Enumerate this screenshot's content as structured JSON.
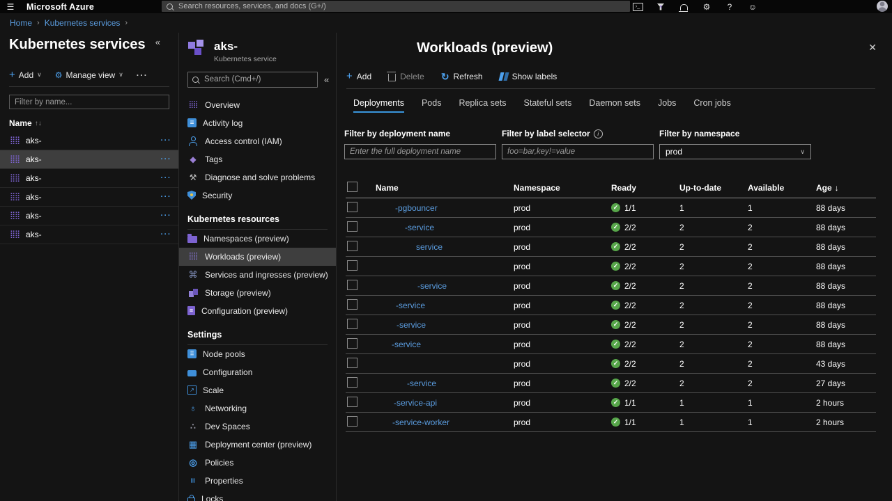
{
  "topbar": {
    "title": "Microsoft Azure",
    "search_placeholder": "Search resources, services, and docs (G+/)"
  },
  "icons": {
    "menu": "☰",
    "collapse": "«",
    "chevron_down": "∨",
    "breadcrumb_separator": "›",
    "more_horizontal": "···",
    "sort_up": "↑",
    "sort_down": "↓",
    "close": "✕",
    "check": "✓",
    "add": "+",
    "refresh": "↻",
    "settings_gear": "⚙",
    "help": "?",
    "feedback": "☺",
    "info": "i"
  },
  "breadcrumb": [
    "Home",
    "Kubernetes services"
  ],
  "left_panel": {
    "title": "Kubernetes services",
    "toolbar": {
      "add": "Add",
      "manage_view": "Manage view"
    },
    "filter_placeholder": "Filter by name...",
    "name_header": "Name",
    "items": [
      {
        "label": "aks-",
        "selected": false
      },
      {
        "label": "aks-",
        "selected": true
      },
      {
        "label": "aks-",
        "selected": false
      },
      {
        "label": "aks-",
        "selected": false
      },
      {
        "label": "aks-",
        "selected": false
      },
      {
        "label": "aks-",
        "selected": false
      }
    ]
  },
  "blade": {
    "title": "aks-",
    "subtitle": "Kubernetes service",
    "search_placeholder": "Search (Cmd+/)",
    "sections": [
      {
        "header": "",
        "items": [
          {
            "label": "Overview",
            "icon": "overview",
            "selected": false
          },
          {
            "label": "Activity log",
            "icon": "activity-log",
            "selected": false
          },
          {
            "label": "Access control (IAM)",
            "icon": "access-control",
            "selected": false
          },
          {
            "label": "Tags",
            "icon": "tags",
            "selected": false
          },
          {
            "label": "Diagnose and solve problems",
            "icon": "diagnose",
            "selected": false
          },
          {
            "label": "Security",
            "icon": "security",
            "selected": false
          }
        ]
      },
      {
        "header": "Kubernetes resources",
        "items": [
          {
            "label": "Namespaces (preview)",
            "icon": "namespaces",
            "selected": false
          },
          {
            "label": "Workloads (preview)",
            "icon": "workloads",
            "selected": true
          },
          {
            "label": "Services and ingresses (preview)",
            "icon": "services",
            "selected": false
          },
          {
            "label": "Storage (preview)",
            "icon": "storage",
            "selected": false
          },
          {
            "label": "Configuration (preview)",
            "icon": "config-doc",
            "selected": false
          }
        ]
      },
      {
        "header": "Settings",
        "items": [
          {
            "label": "Node pools",
            "icon": "node-pools",
            "selected": false
          },
          {
            "label": "Configuration",
            "icon": "toolbox",
            "selected": false
          },
          {
            "label": "Scale",
            "icon": "scale",
            "selected": false
          },
          {
            "label": "Networking",
            "icon": "networking",
            "selected": false
          },
          {
            "label": "Dev Spaces",
            "icon": "dev-spaces",
            "selected": false
          },
          {
            "label": "Deployment center (preview)",
            "icon": "deployment-center",
            "selected": false
          },
          {
            "label": "Policies",
            "icon": "policies",
            "selected": false
          },
          {
            "label": "Properties",
            "icon": "properties",
            "selected": false
          },
          {
            "label": "Locks",
            "icon": "locks",
            "selected": false
          }
        ]
      }
    ]
  },
  "main": {
    "title": "Workloads (preview)",
    "toolbar": [
      {
        "label": "Add",
        "icon": "add",
        "disabled": false
      },
      {
        "label": "Delete",
        "icon": "delete",
        "disabled": true
      },
      {
        "label": "Refresh",
        "icon": "refresh",
        "disabled": false
      },
      {
        "label": "Show labels",
        "icon": "show-labels",
        "disabled": false
      }
    ],
    "tabs": [
      "Deployments",
      "Pods",
      "Replica sets",
      "Stateful sets",
      "Daemon sets",
      "Jobs",
      "Cron jobs"
    ],
    "active_tab": "Deployments",
    "filters": {
      "deployment": {
        "label": "Filter by deployment name",
        "placeholder": "Enter the full deployment name"
      },
      "label_selector": {
        "label": "Filter by label selector",
        "placeholder": "foo=bar,key!=value",
        "has_info": true
      },
      "namespace": {
        "label": "Filter by namespace",
        "value": "prod"
      }
    },
    "table": {
      "columns": [
        "Name",
        "Namespace",
        "Ready",
        "Up-to-date",
        "Available",
        "Age"
      ],
      "sort": {
        "column": "Age",
        "direction": "desc"
      },
      "rows": [
        {
          "name": "-pgbouncer",
          "indent": 28,
          "namespace": "prod",
          "ready": "1/1",
          "up_to_date": "1",
          "available": "1",
          "age": "88 days"
        },
        {
          "name": "-service",
          "indent": 42,
          "namespace": "prod",
          "ready": "2/2",
          "up_to_date": "2",
          "available": "2",
          "age": "88 days"
        },
        {
          "name": "service",
          "indent": 58,
          "namespace": "prod",
          "ready": "2/2",
          "up_to_date": "2",
          "available": "2",
          "age": "88 days"
        },
        {
          "name": "",
          "indent": 0,
          "namespace": "prod",
          "ready": "2/2",
          "up_to_date": "2",
          "available": "2",
          "age": "88 days"
        },
        {
          "name": "-service",
          "indent": 60,
          "namespace": "prod",
          "ready": "2/2",
          "up_to_date": "2",
          "available": "2",
          "age": "88 days"
        },
        {
          "name": "-service",
          "indent": 29,
          "namespace": "prod",
          "ready": "2/2",
          "up_to_date": "2",
          "available": "2",
          "age": "88 days"
        },
        {
          "name": "-service",
          "indent": 30,
          "namespace": "prod",
          "ready": "2/2",
          "up_to_date": "2",
          "available": "2",
          "age": "88 days"
        },
        {
          "name": "-service",
          "indent": 23,
          "namespace": "prod",
          "ready": "2/2",
          "up_to_date": "2",
          "available": "2",
          "age": "88 days"
        },
        {
          "name": "",
          "indent": 0,
          "namespace": "prod",
          "ready": "2/2",
          "up_to_date": "2",
          "available": "2",
          "age": "43 days"
        },
        {
          "name": "-service",
          "indent": 45,
          "namespace": "prod",
          "ready": "2/2",
          "up_to_date": "2",
          "available": "2",
          "age": "27 days"
        },
        {
          "name": "-service-api",
          "indent": 26,
          "namespace": "prod",
          "ready": "1/1",
          "up_to_date": "1",
          "available": "1",
          "age": "2 hours"
        },
        {
          "name": "-service-worker",
          "indent": 24,
          "namespace": "prod",
          "ready": "1/1",
          "up_to_date": "1",
          "available": "1",
          "age": "2 hours"
        }
      ]
    }
  },
  "colors": {
    "accent": "#4da2f0",
    "link": "#5b9de0",
    "kubernetes_purple": "#7d63d1",
    "ready_green": "#57a64a",
    "tab_underline": "#3a96dd"
  }
}
